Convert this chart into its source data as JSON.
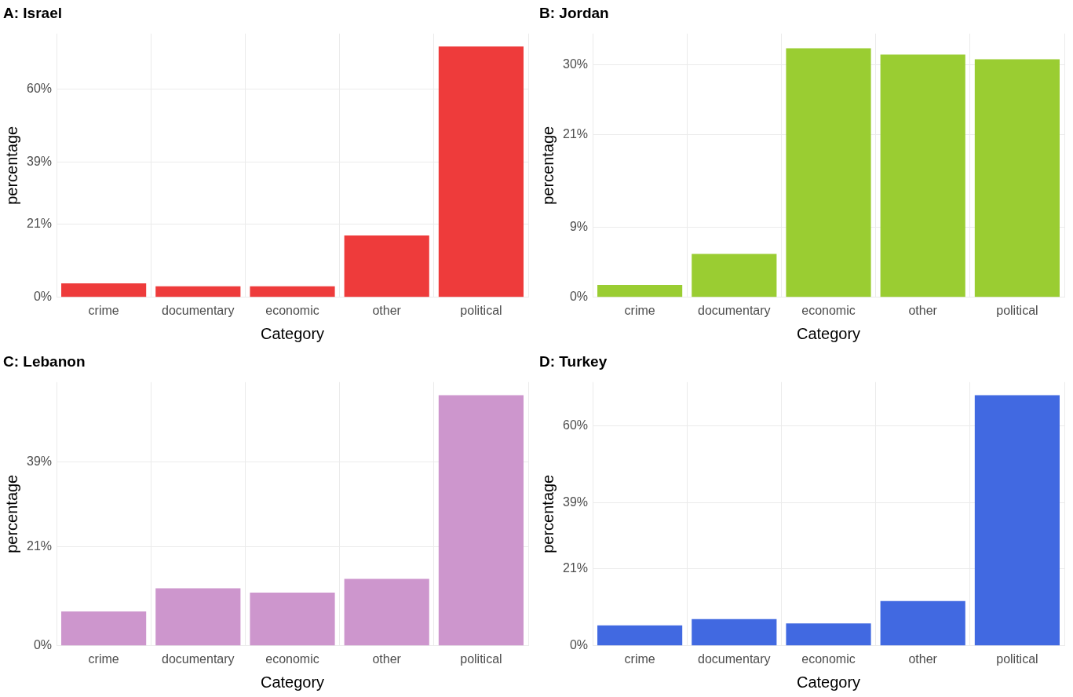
{
  "chart_data": [
    {
      "type": "bar",
      "title": "A: Israel",
      "xlabel": "Category",
      "ylabel": "percentage",
      "categories": [
        "crime",
        "documentary",
        "economic",
        "other",
        "political"
      ],
      "values": [
        4.0,
        3.2,
        3.2,
        17.8,
        72.3
      ],
      "color": "#ee3b3b",
      "ylim": [
        0,
        76
      ],
      "yticks": [
        {
          "value": 0,
          "label": "0%"
        },
        {
          "value": 21,
          "label": "21%"
        },
        {
          "value": 39,
          "label": "39%"
        },
        {
          "value": 60,
          "label": "60%"
        }
      ],
      "grid": true,
      "legend": false
    },
    {
      "type": "bar",
      "title": "B: Jordan",
      "xlabel": "Category",
      "ylabel": "percentage",
      "categories": [
        "crime",
        "documentary",
        "economic",
        "other",
        "political"
      ],
      "values": [
        1.6,
        5.6,
        32.1,
        31.3,
        30.7
      ],
      "color": "#9acd32",
      "ylim": [
        0,
        34
      ],
      "yticks": [
        {
          "value": 0,
          "label": "0%"
        },
        {
          "value": 9,
          "label": "9%"
        },
        {
          "value": 21,
          "label": "21%"
        },
        {
          "value": 30,
          "label": "30%"
        }
      ],
      "grid": true,
      "legend": false
    },
    {
      "type": "bar",
      "title": "C: Lebanon",
      "xlabel": "Category",
      "ylabel": "percentage",
      "categories": [
        "crime",
        "documentary",
        "economic",
        "other",
        "political"
      ],
      "values": [
        7.3,
        12.2,
        11.3,
        14.2,
        53.2
      ],
      "color": "#cd96cd",
      "ylim": [
        0,
        56
      ],
      "yticks": [
        {
          "value": 0,
          "label": "0%"
        },
        {
          "value": 21,
          "label": "21%"
        },
        {
          "value": 39,
          "label": "39%"
        }
      ],
      "grid": true,
      "legend": false
    },
    {
      "type": "bar",
      "title": "D: Turkey",
      "xlabel": "Category",
      "ylabel": "percentage",
      "categories": [
        "crime",
        "documentary",
        "economic",
        "other",
        "political"
      ],
      "values": [
        5.6,
        7.3,
        6.1,
        12.2,
        68.4
      ],
      "color": "#4169e1",
      "ylim": [
        0,
        72
      ],
      "yticks": [
        {
          "value": 0,
          "label": "0%"
        },
        {
          "value": 21,
          "label": "21%"
        },
        {
          "value": 39,
          "label": "39%"
        },
        {
          "value": 60,
          "label": "60%"
        }
      ],
      "grid": true,
      "legend": false
    }
  ]
}
